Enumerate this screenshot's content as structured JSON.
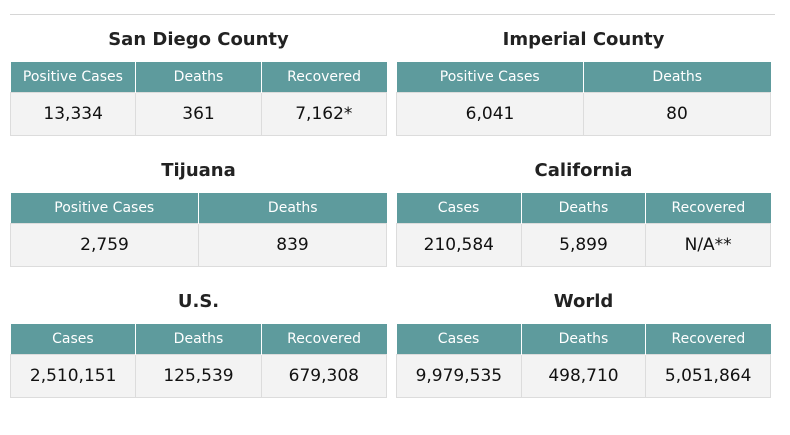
{
  "panels": [
    {
      "title": "San Diego County",
      "headers": [
        "Positive Cases",
        "Deaths",
        "Recovered"
      ],
      "values": [
        "13,334",
        "361",
        "7,162*"
      ]
    },
    {
      "title": "Imperial County",
      "headers": [
        "Positive Cases",
        "Deaths"
      ],
      "values": [
        "6,041",
        "80"
      ]
    },
    {
      "title": "Tijuana",
      "headers": [
        "Positive Cases",
        "Deaths"
      ],
      "values": [
        "2,759",
        "839"
      ]
    },
    {
      "title": "California",
      "headers": [
        "Cases",
        "Deaths",
        "Recovered"
      ],
      "values": [
        "210,584",
        "5,899",
        "N/A**"
      ]
    },
    {
      "title": "U.S.",
      "headers": [
        "Cases",
        "Deaths",
        "Recovered"
      ],
      "values": [
        "2,510,151",
        "125,539",
        "679,308"
      ]
    },
    {
      "title": "World",
      "headers": [
        "Cases",
        "Deaths",
        "Recovered"
      ],
      "values": [
        "9,979,535",
        "498,710",
        "5,051,864"
      ]
    }
  ]
}
